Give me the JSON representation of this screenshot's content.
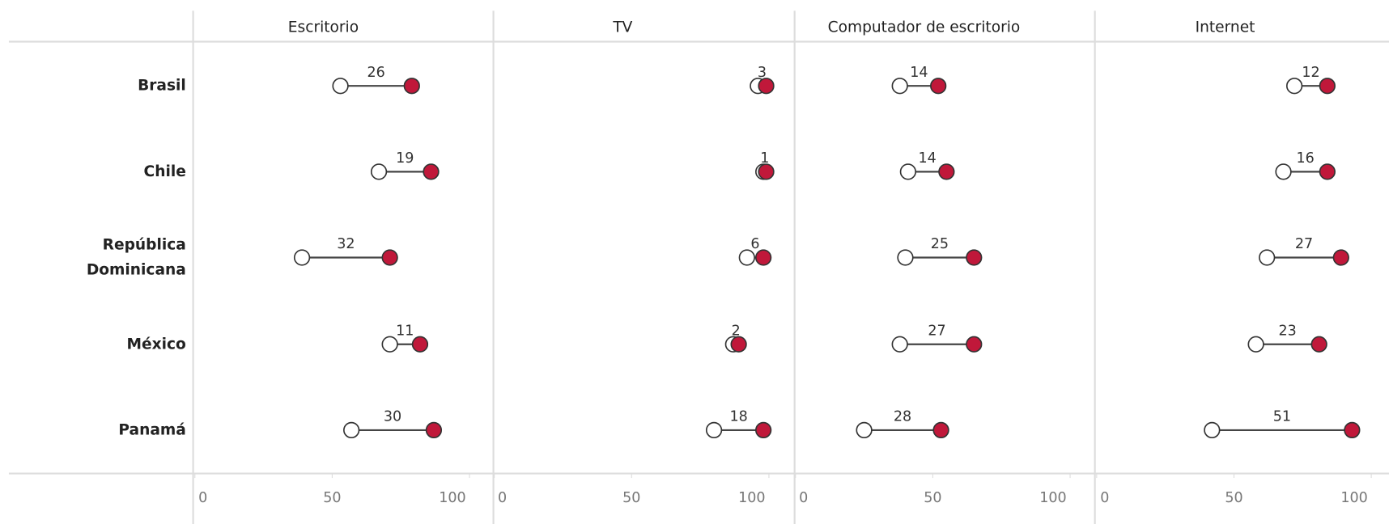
{
  "chart_data": {
    "type": "dumbbell",
    "categories": [
      "Brasil",
      "Chile",
      "República Dominicana",
      "México",
      "Panamá"
    ],
    "panels": [
      {
        "title": "Escritorio",
        "xlim": [
          0,
          100
        ],
        "xticks": [
          0,
          50,
          100
        ],
        "series": [
          {
            "color": "#ffffff",
            "values": [
              53,
              67,
              39,
              71,
              57
            ]
          },
          {
            "color": "#c0183a",
            "values": [
              79,
              86,
              71,
              82,
              87
            ]
          }
        ],
        "gaps": [
          26,
          19,
          32,
          11,
          30
        ]
      },
      {
        "title": "TV",
        "xlim": [
          0,
          100
        ],
        "xticks": [
          0,
          50,
          100
        ],
        "series": [
          {
            "color": "#ffffff",
            "values": [
              96,
              98,
              92,
              87,
              80
            ]
          },
          {
            "color": "#c0183a",
            "values": [
              99,
              99,
              98,
              89,
              98
            ]
          }
        ],
        "gaps": [
          3,
          1,
          6,
          2,
          18
        ]
      },
      {
        "title": "Computador de escritorio",
        "xlim": [
          0,
          100
        ],
        "xticks": [
          0,
          50,
          100
        ],
        "series": [
          {
            "color": "#ffffff",
            "values": [
              38,
              41,
              40,
              38,
              25
            ]
          },
          {
            "color": "#c0183a",
            "values": [
              52,
              55,
              65,
              65,
              53
            ]
          }
        ],
        "gaps": [
          14,
          14,
          25,
          27,
          28
        ]
      },
      {
        "title": "Internet",
        "xlim": [
          0,
          100
        ],
        "xticks": [
          0,
          50,
          100
        ],
        "series": [
          {
            "color": "#ffffff",
            "values": [
              72,
              68,
              62,
              58,
              42
            ]
          },
          {
            "color": "#c0183a",
            "values": [
              84,
              84,
              89,
              81,
              93
            ]
          }
        ],
        "gaps": [
          12,
          16,
          27,
          23,
          51
        ]
      }
    ]
  }
}
